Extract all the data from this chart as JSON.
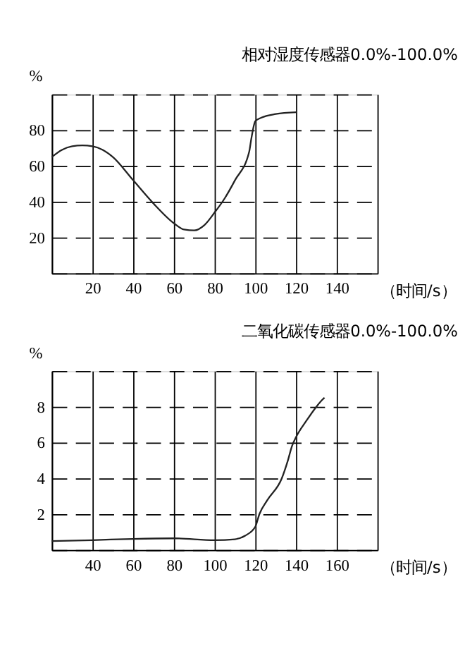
{
  "chart_data": [
    {
      "type": "line",
      "title": "相对湿度传感器0.0%-100.0%",
      "xlabel": "（时间/s）",
      "ylabel": "%",
      "x": [
        0,
        5,
        10,
        15,
        20,
        25,
        30,
        40,
        50,
        60,
        65,
        70,
        75,
        80,
        85,
        90,
        97,
        98,
        100,
        103,
        110,
        120
      ],
      "series": [
        {
          "color": "#222222",
          "values": [
            65,
            69,
            71,
            71.5,
            71,
            69,
            65,
            52,
            39,
            28,
            24.5,
            24,
            27,
            34,
            42,
            52,
            68,
            75,
            85,
            87,
            89,
            90
          ]
        }
      ],
      "xlim": [
        0,
        160
      ],
      "xticks": [
        {
          "value": 0,
          "label": null
        },
        20,
        40,
        60,
        80,
        100,
        120,
        140,
        {
          "value": 160,
          "label": null
        }
      ],
      "ylim": [
        0,
        100
      ],
      "yticks": [
        {
          "value": 0,
          "label": null
        },
        20,
        40,
        60,
        80,
        {
          "value": 100,
          "label": null
        }
      ],
      "grid": true
    },
    {
      "type": "line",
      "title": "二氧化碳传感器0.0%-100.0%",
      "xlabel": "（时间/s）",
      "ylabel": "%",
      "x": [
        20,
        40,
        60,
        80,
        100,
        110,
        115,
        120,
        122,
        126,
        133,
        136,
        138,
        140,
        145,
        150,
        153,
        154
      ],
      "series": [
        {
          "color": "#222222",
          "values": [
            0.5,
            0.55,
            0.62,
            0.65,
            0.55,
            0.6,
            0.8,
            1.3,
            2.0,
            2.8,
            4,
            5,
            5.8,
            6.3,
            7.2,
            8,
            8.4,
            8.5
          ]
        }
      ],
      "xlim": [
        20,
        180
      ],
      "xticks": [
        {
          "value": 20,
          "label": null
        },
        40,
        60,
        80,
        100,
        120,
        140,
        160,
        {
          "value": 180,
          "label": null
        }
      ],
      "ylim": [
        0,
        10
      ],
      "yticks": [
        {
          "value": 0,
          "label": null
        },
        2,
        4,
        6,
        8,
        {
          "value": 10,
          "label": null
        }
      ],
      "grid": true
    }
  ]
}
